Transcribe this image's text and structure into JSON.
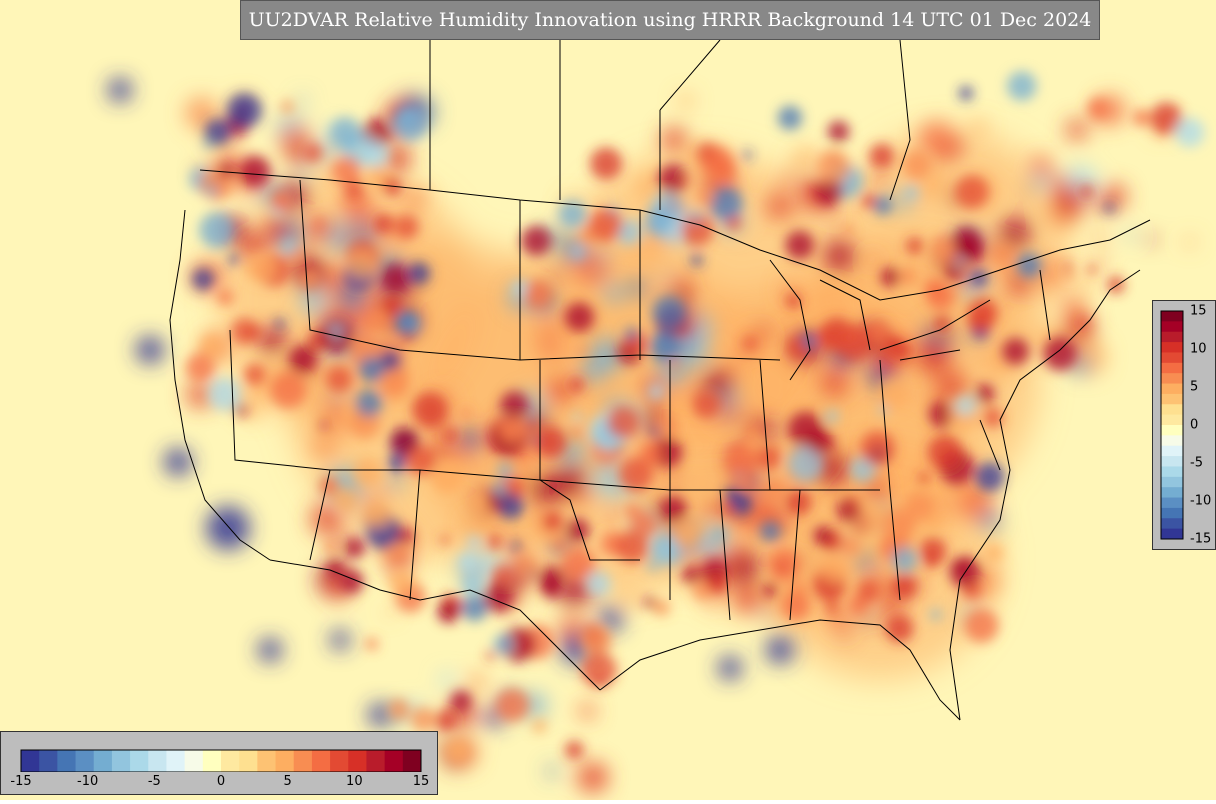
{
  "title": "UU2DVAR Relative Humidity Innovation using HRRR Background 14 UTC 01 Dec 2024",
  "colorbar": {
    "min": -15,
    "max": 15,
    "ticks": [
      "-15",
      "-10",
      "-5",
      "0",
      "5",
      "10",
      "15"
    ],
    "ticks_vertical": [
      "15",
      "10",
      "5",
      "0",
      "-5",
      "-10",
      "-15"
    ],
    "colors": [
      "#313695",
      "#3b54a3",
      "#4575b4",
      "#5b8fc3",
      "#74add1",
      "#92c5de",
      "#abd9e9",
      "#c8e6f0",
      "#e0f3f8",
      "#f7fbe8",
      "#ffffbf",
      "#fee9a0",
      "#fee090",
      "#fdc273",
      "#fdae61",
      "#f88d52",
      "#f46d43",
      "#e34a33",
      "#d73027",
      "#b91c2b",
      "#a50026",
      "#7f0020"
    ]
  },
  "colors": {
    "background": "#fff6b8",
    "borders": "#000000",
    "title_bg": "#888888"
  }
}
